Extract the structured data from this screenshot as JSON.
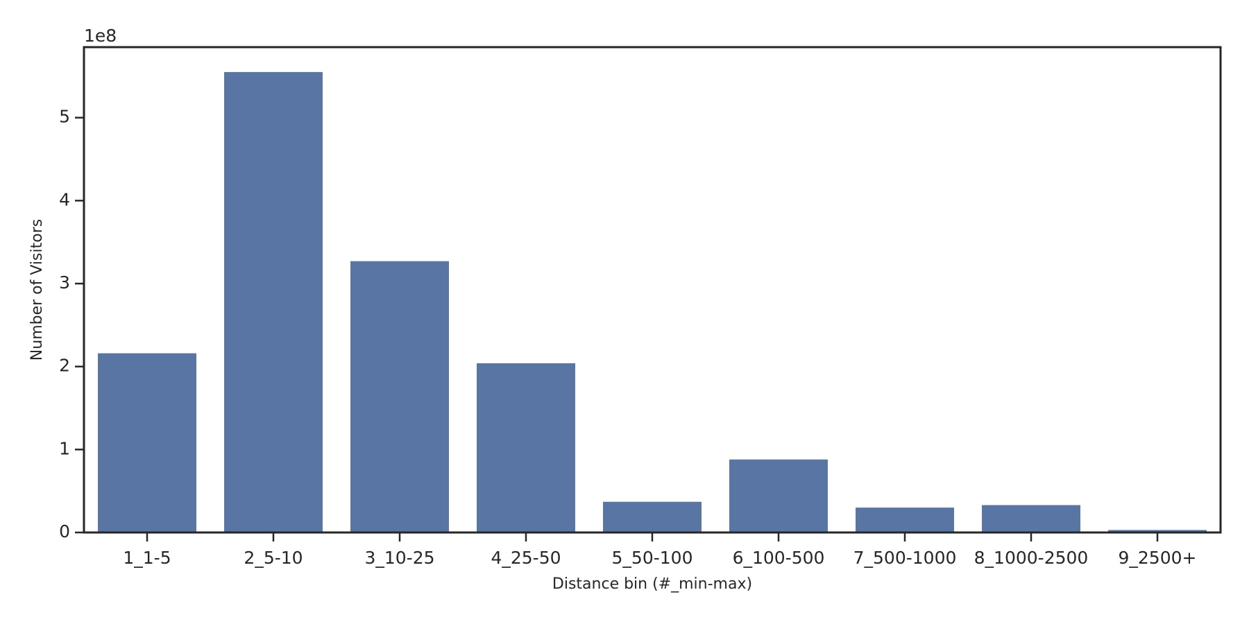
{
  "chart_data": {
    "type": "bar",
    "x_label": "Distance bin (#_min-max)",
    "y_label": "Number of Visitors",
    "y_offset_label": "1e8",
    "categories": [
      "1_1-5",
      "2_5-10",
      "3_10-25",
      "4_25-50",
      "5_50-100",
      "6_100-500",
      "7_500-1000",
      "8_1000-2500",
      "9_2500+"
    ],
    "values": [
      2.16,
      5.55,
      3.27,
      2.04,
      0.37,
      0.88,
      0.3,
      0.33,
      0.03
    ],
    "color": "#5875a4",
    "ylim": [
      0,
      5.85
    ],
    "yticks": [
      0,
      1,
      2,
      3,
      4,
      5
    ]
  }
}
